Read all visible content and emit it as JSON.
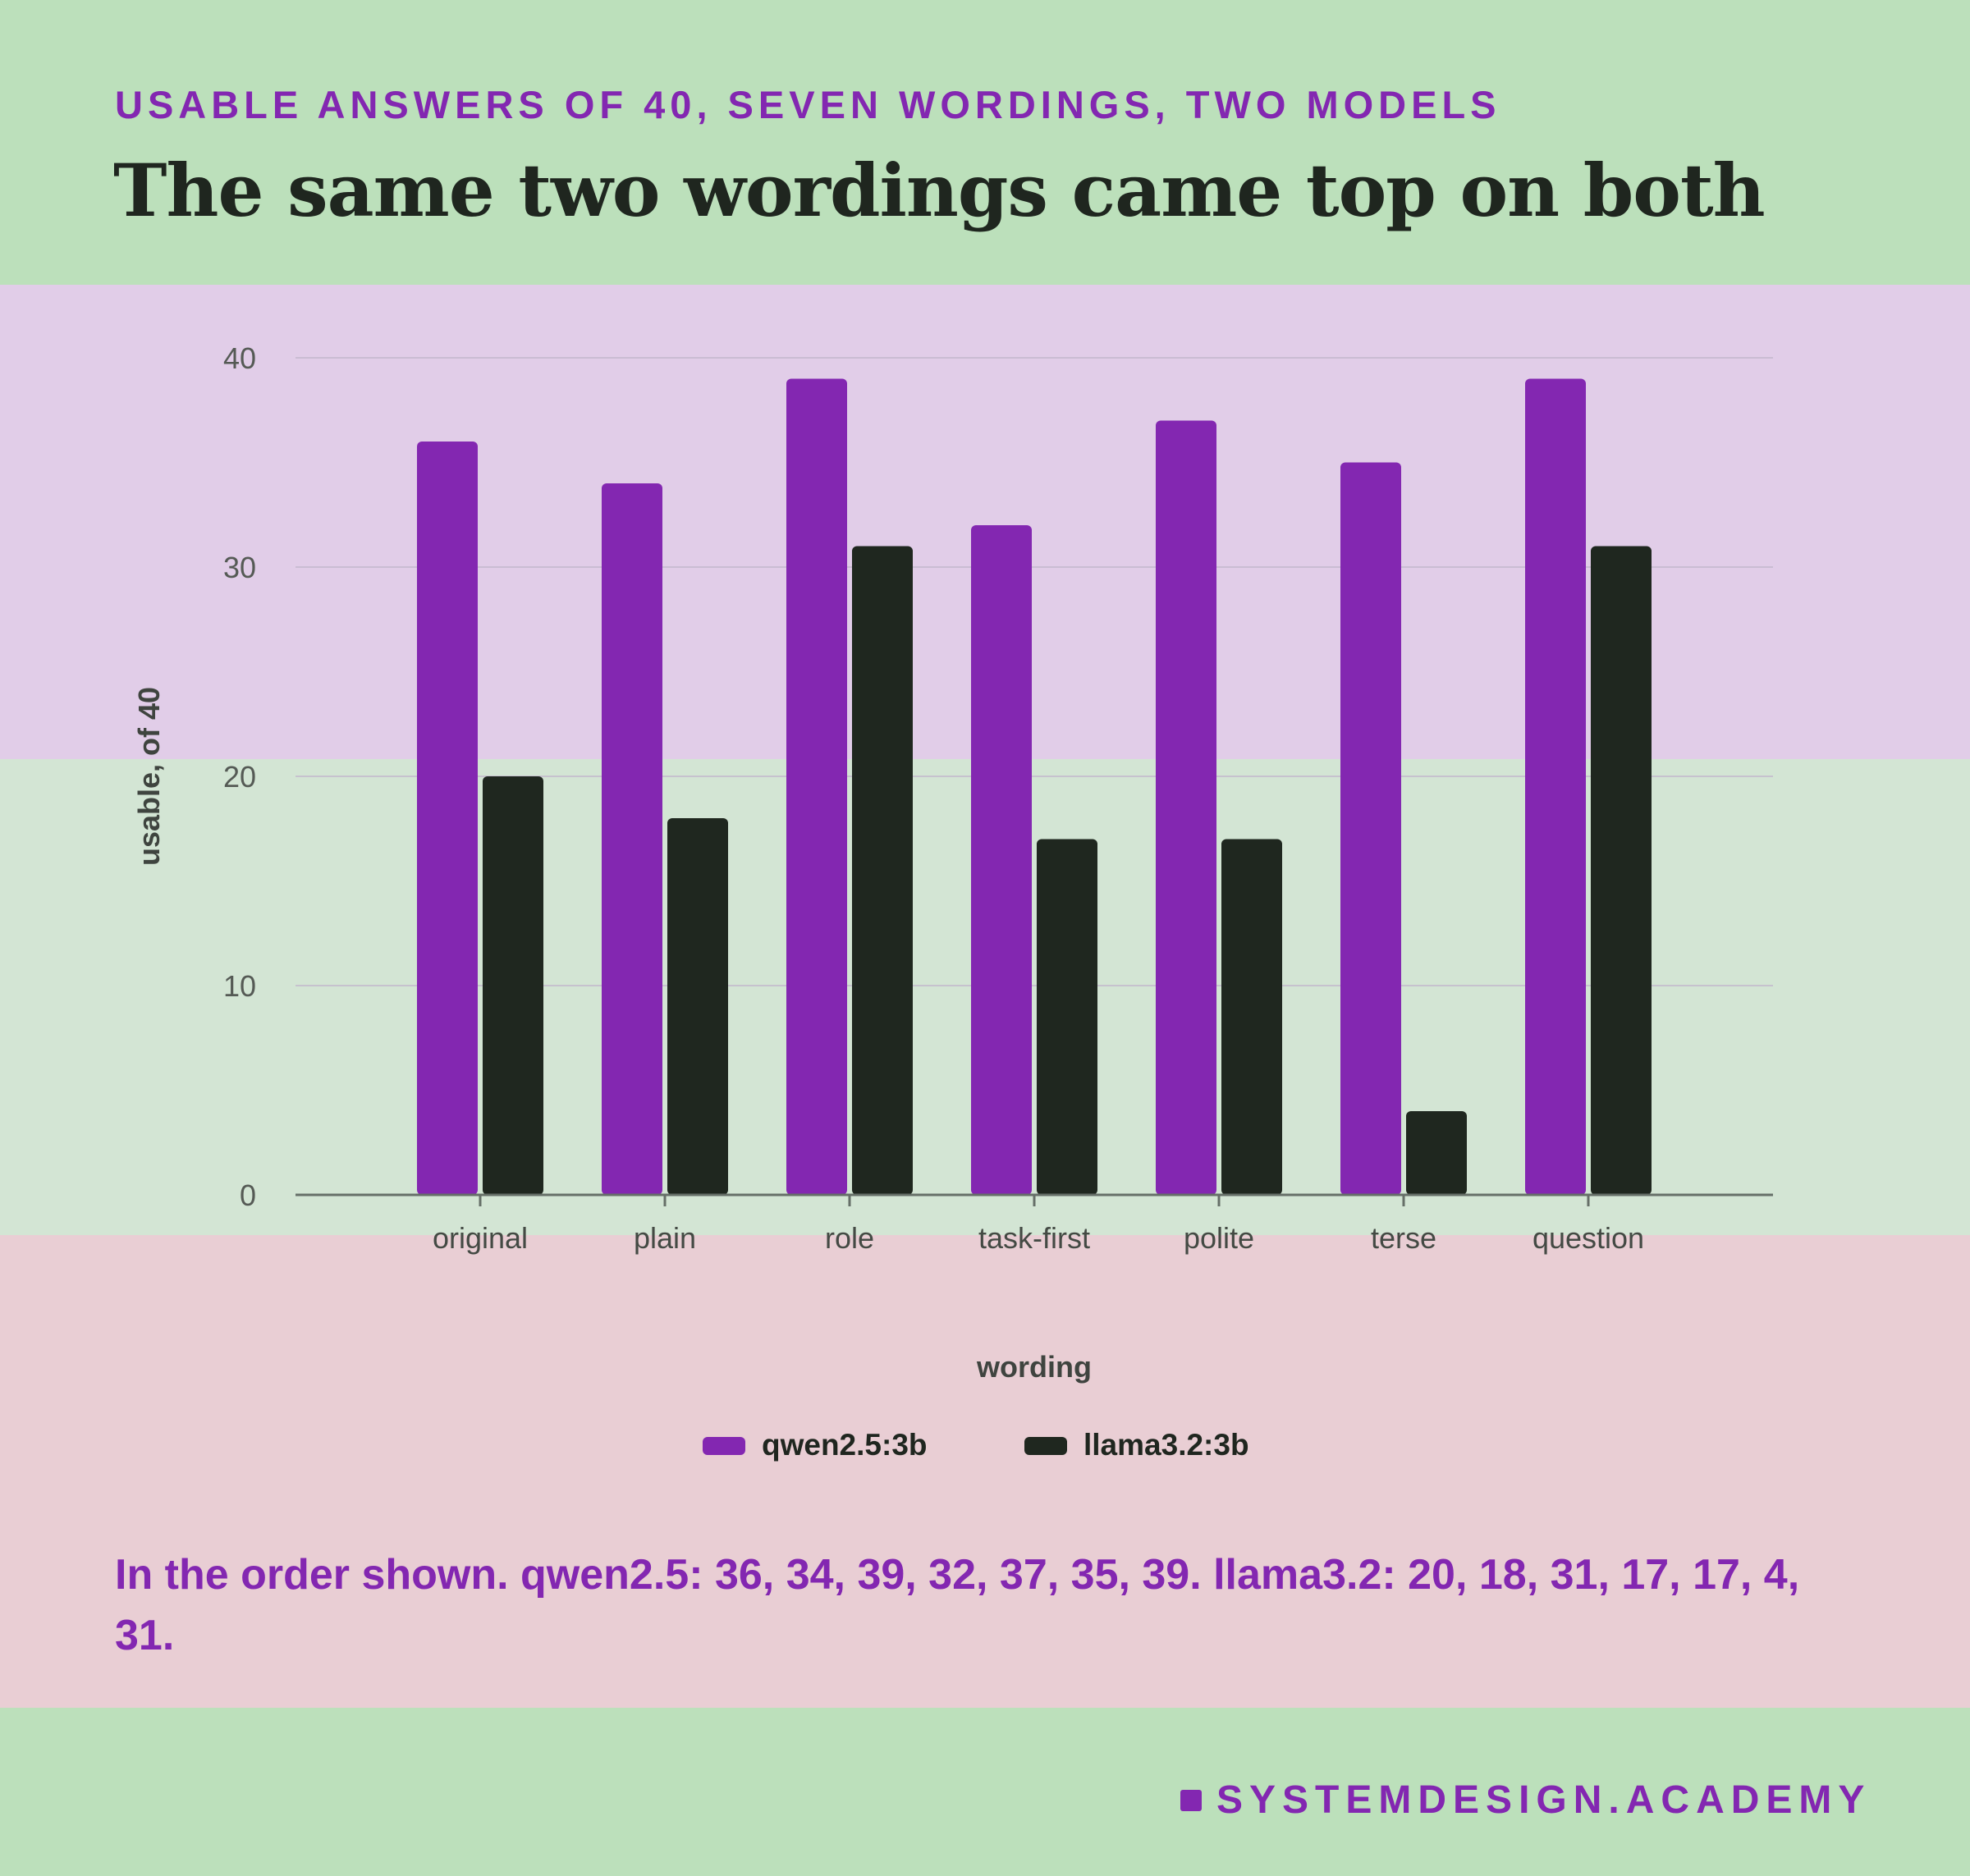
{
  "header": {
    "kicker": "USABLE ANSWERS OF 40, SEVEN WORDINGS, TWO MODELS",
    "headline": "The same two wordings came top on both"
  },
  "caption": "In the order shown. qwen2.5: 36, 34, 39, 32, 37, 35, 39. llama3.2: 20, 18, 31, 17, 17, 4, 31.",
  "brand": "SYSTEMDESIGN.ACADEMY",
  "colors": {
    "qwen": "#8327b1",
    "llama": "#1f271f",
    "text": "#1f261f",
    "axis": "#666f68",
    "grid": "#c2b7cc"
  },
  "chart_data": {
    "type": "bar",
    "categories": [
      "original",
      "plain",
      "role",
      "task-first",
      "polite",
      "terse",
      "question"
    ],
    "series": [
      {
        "name": "qwen2.5:3b",
        "values": [
          36,
          34,
          39,
          32,
          37,
          35,
          39
        ]
      },
      {
        "name": "llama3.2:3b",
        "values": [
          20,
          18,
          31,
          17,
          17,
          4,
          31
        ]
      }
    ],
    "xlabel": "wording",
    "ylabel": "usable, of 40",
    "ylim": [
      0,
      40
    ],
    "yticks": [
      0,
      10,
      20,
      30,
      40
    ],
    "grid": true,
    "legend": "bottom-center"
  }
}
